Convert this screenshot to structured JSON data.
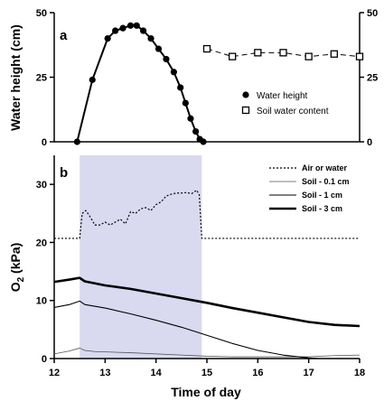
{
  "chart_data": [
    {
      "panel": "a",
      "type": "scatter",
      "xlim": [
        12,
        18
      ],
      "ylim": [
        0,
        50
      ],
      "ylabel": "Water height (cm)",
      "yticks": [
        0,
        25,
        50
      ],
      "y2ticks": [
        0,
        25,
        50
      ],
      "legend_position": "right",
      "series": [
        {
          "name": "Water height",
          "marker": "filled-circle",
          "line": true,
          "x": [
            12.45,
            12.75,
            13.05,
            13.2,
            13.35,
            13.5,
            13.62,
            13.75,
            13.9,
            14.05,
            14.2,
            14.35,
            14.48,
            14.58,
            14.68,
            14.78,
            14.86,
            14.93
          ],
          "y": [
            0,
            24,
            40,
            43,
            44,
            45,
            45,
            43,
            40,
            36,
            32,
            27,
            21,
            15,
            9,
            4,
            1,
            0
          ]
        },
        {
          "name": "Soil water content",
          "marker": "open-square",
          "line": "dashed",
          "x": [
            15.0,
            15.5,
            16.0,
            16.5,
            17.0,
            17.5,
            18.0
          ],
          "y": [
            36,
            33,
            34.5,
            34.5,
            33,
            34,
            33
          ]
        }
      ]
    },
    {
      "panel": "b",
      "type": "line",
      "xlim": [
        12,
        18
      ],
      "ylim": [
        0,
        35
      ],
      "xticks": [
        12,
        13,
        14,
        15,
        16,
        17,
        18
      ],
      "yticks": [
        0,
        10,
        20,
        30
      ],
      "xlabel": "Time of day",
      "ylabel": "O2 (kPa)",
      "shaded_span": [
        12.5,
        14.9
      ],
      "legend_position": "top-right",
      "series": [
        {
          "name": "Air or water",
          "style": "dotted",
          "x": [
            12,
            12.5,
            12.55,
            12.62,
            12.7,
            12.8,
            12.9,
            13.0,
            13.1,
            13.2,
            13.3,
            13.4,
            13.5,
            13.6,
            13.7,
            13.8,
            13.9,
            14.0,
            14.1,
            14.2,
            14.3,
            14.4,
            14.5,
            14.6,
            14.7,
            14.8,
            14.85,
            14.9,
            18
          ],
          "y": [
            20.7,
            20.7,
            25,
            25.5,
            24.5,
            23,
            23,
            23.5,
            23,
            23.5,
            24,
            23.2,
            25.3,
            25,
            25.8,
            26,
            25.5,
            26.5,
            27,
            28,
            28.3,
            28.5,
            28.5,
            28.6,
            28.4,
            29,
            28.2,
            20.7,
            20.7
          ]
        },
        {
          "name": "Soil - 0.1 cm",
          "style": "thin",
          "x": [
            12,
            12.3,
            12.5,
            12.6,
            12.8,
            13.5,
            14.5,
            15,
            15.5,
            16,
            17,
            17.5,
            18
          ],
          "y": [
            0.8,
            1.3,
            1.8,
            1.4,
            1.2,
            1.0,
            0.6,
            0.4,
            0.3,
            0.3,
            0.3,
            0.5,
            0.6
          ]
        },
        {
          "name": "Soil - 1 cm",
          "style": "medium",
          "x": [
            12,
            12.3,
            12.5,
            12.6,
            13,
            13.5,
            14,
            14.5,
            15,
            15.5,
            16,
            16.5,
            17,
            17.2,
            17.5,
            18
          ],
          "y": [
            8.8,
            9.3,
            9.9,
            9.3,
            8.7,
            7.7,
            6.6,
            5.4,
            4.0,
            2.6,
            1.4,
            0.6,
            0.1,
            0.0,
            0.0,
            0.0
          ]
        },
        {
          "name": "Soil - 3 cm",
          "style": "thick",
          "x": [
            12,
            12.3,
            12.5,
            12.6,
            13,
            13.5,
            14,
            14.5,
            15,
            15.5,
            16,
            16.5,
            17,
            17.5,
            18
          ],
          "y": [
            13.2,
            13.6,
            13.9,
            13.3,
            12.6,
            12.0,
            11.2,
            10.4,
            9.6,
            8.7,
            7.9,
            7.1,
            6.3,
            5.8,
            5.6
          ]
        }
      ]
    }
  ]
}
